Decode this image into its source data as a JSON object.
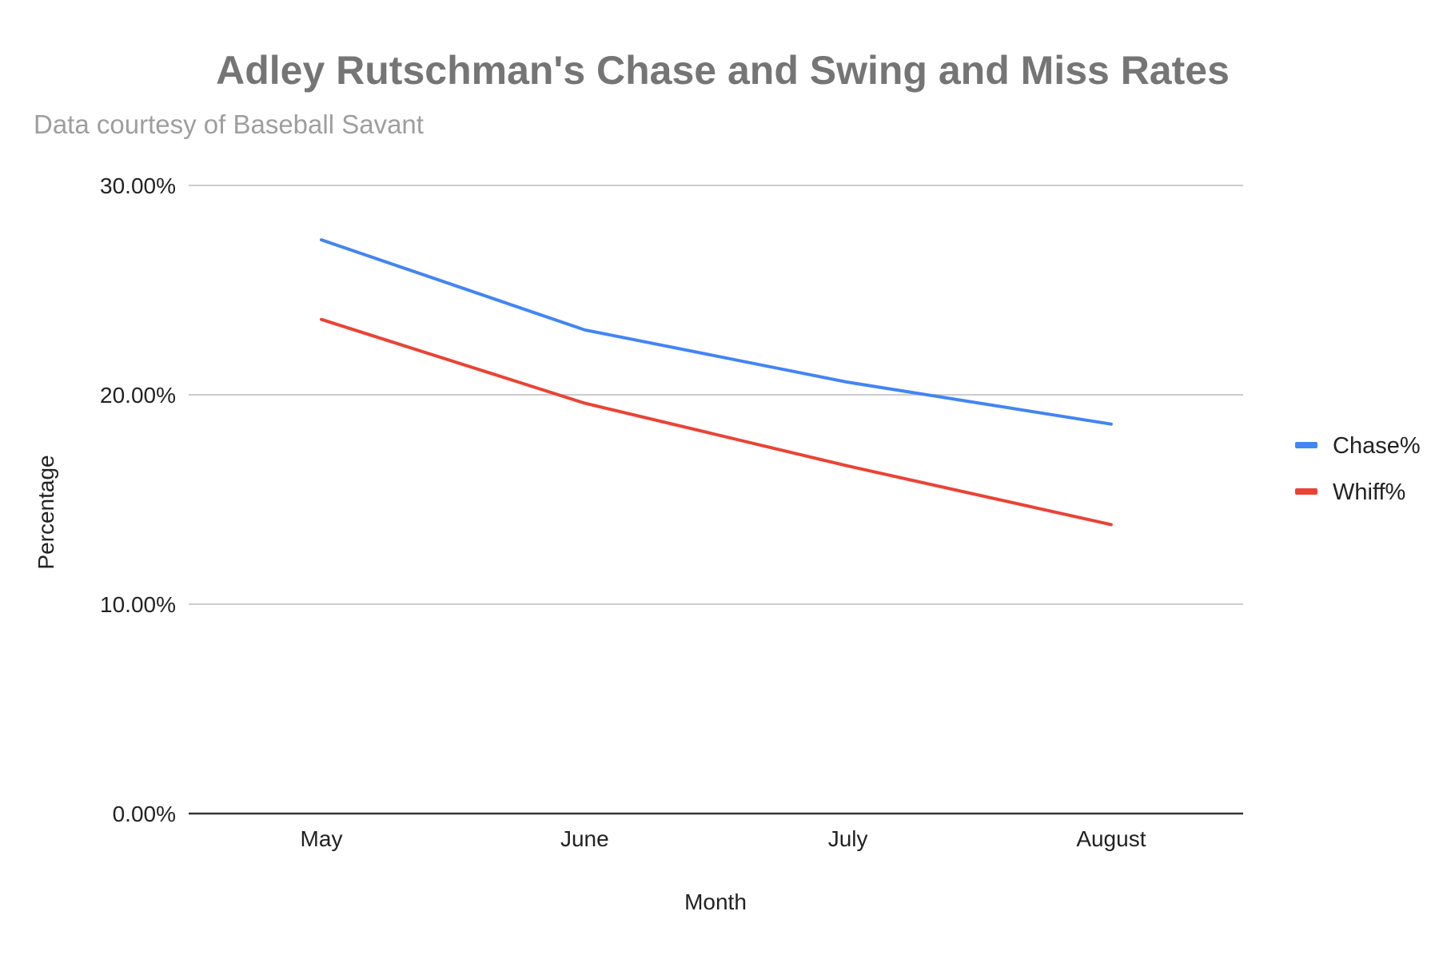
{
  "chart_data": {
    "type": "line",
    "title": "Adley Rutschman's Chase and Swing and Miss Rates",
    "subtitle": "Data courtesy of Baseball Savant",
    "xlabel": "Month",
    "ylabel": "Percentage",
    "categories": [
      "May",
      "June",
      "July",
      "August"
    ],
    "y_ticks": [
      "0.00%",
      "10.00%",
      "20.00%",
      "30.00%"
    ],
    "ylim": [
      0,
      30
    ],
    "grid": true,
    "legend_position": "right",
    "series": [
      {
        "name": "Chase%",
        "color": "#4285f4",
        "values": [
          27.4,
          23.1,
          20.6,
          18.6
        ]
      },
      {
        "name": "Whiff%",
        "color": "#ea4335",
        "values": [
          23.6,
          19.6,
          16.6,
          13.8
        ]
      }
    ]
  }
}
